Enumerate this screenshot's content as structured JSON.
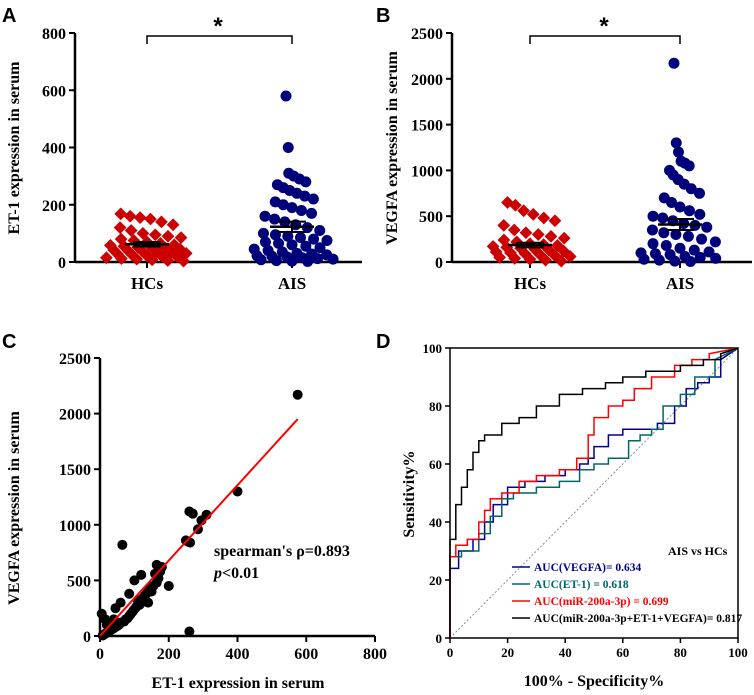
{
  "chart_data": [
    {
      "panel": "A",
      "type": "scatter",
      "subtype": "dot-plot",
      "ylabel": "ET-1 expression in serum",
      "categories": [
        "HCs",
        "AIS"
      ],
      "ylim": [
        0,
        800
      ],
      "yticks": [
        0,
        200,
        400,
        600,
        800
      ],
      "significance": "*",
      "series": [
        {
          "name": "HCs",
          "color": "#cc0000",
          "marker": "diamond",
          "mean": 62,
          "sem": 8,
          "values": [
            168,
            160,
            155,
            150,
            140,
            130,
            120,
            110,
            100,
            95,
            90,
            85,
            80,
            75,
            70,
            65,
            60,
            58,
            55,
            52,
            50,
            48,
            45,
            42,
            40,
            38,
            35,
            32,
            30,
            28,
            25,
            22,
            20,
            18,
            15,
            12,
            10,
            8,
            5,
            3
          ]
        },
        {
          "name": "AIS",
          "color": "#00007a",
          "marker": "circle",
          "mean": 123,
          "sem": 18,
          "values": [
            580,
            400,
            310,
            300,
            290,
            280,
            270,
            260,
            250,
            240,
            230,
            220,
            210,
            200,
            190,
            180,
            170,
            160,
            150,
            140,
            130,
            120,
            110,
            100,
            95,
            90,
            85,
            80,
            75,
            70,
            65,
            60,
            55,
            50,
            45,
            40,
            35,
            30,
            28,
            25,
            22,
            20,
            18,
            15,
            12,
            10,
            8,
            5,
            3,
            2
          ]
        }
      ]
    },
    {
      "panel": "B",
      "type": "scatter",
      "subtype": "dot-plot",
      "ylabel": "VEGFA expression in serum",
      "categories": [
        "HCs",
        "AIS"
      ],
      "ylim": [
        0,
        2500
      ],
      "yticks": [
        0,
        500,
        1000,
        1500,
        2000,
        2500
      ],
      "significance": "*",
      "series": [
        {
          "name": "HCs",
          "color": "#cc0000",
          "marker": "diamond",
          "mean": 185,
          "sem": 25,
          "values": [
            650,
            620,
            560,
            520,
            480,
            450,
            400,
            350,
            320,
            300,
            280,
            260,
            240,
            220,
            200,
            190,
            180,
            170,
            160,
            150,
            140,
            130,
            120,
            110,
            100,
            90,
            80,
            70,
            60,
            50,
            40,
            30,
            20,
            10
          ]
        },
        {
          "name": "AIS",
          "color": "#00007a",
          "marker": "circle",
          "mean": 410,
          "sem": 60,
          "values": [
            2170,
            1300,
            1200,
            1100,
            1080,
            1050,
            1000,
            950,
            900,
            850,
            800,
            750,
            700,
            650,
            600,
            560,
            520,
            500,
            480,
            450,
            420,
            400,
            380,
            350,
            320,
            300,
            280,
            250,
            220,
            200,
            180,
            150,
            130,
            110,
            100,
            90,
            80,
            60,
            50,
            40,
            30,
            20,
            10,
            5
          ]
        }
      ]
    },
    {
      "panel": "C",
      "type": "scatter",
      "xlabel": "ET-1 expression in serum",
      "ylabel": "VEGFA expression in serum",
      "xlim": [
        0,
        800
      ],
      "ylim": [
        0,
        2500
      ],
      "xticks": [
        0,
        200,
        400,
        600,
        800
      ],
      "yticks": [
        0,
        500,
        1000,
        1500,
        2000,
        2500
      ],
      "annotation": {
        "line1": "spearman's ρ=0.893",
        "line2_italic": "p",
        "line2_rest": "<0.01"
      },
      "fit_line": {
        "color": "#ff0000",
        "x": [
          0,
          575
        ],
        "y": [
          0,
          1950
        ]
      },
      "points": [
        [
          575,
          2170
        ],
        [
          400,
          1300
        ],
        [
          310,
          1090
        ],
        [
          295,
          1040
        ],
        [
          285,
          960
        ],
        [
          260,
          1120
        ],
        [
          270,
          1100
        ],
        [
          250,
          860
        ],
        [
          262,
          840
        ],
        [
          255,
          850
        ],
        [
          180,
          620
        ],
        [
          175,
          580
        ],
        [
          170,
          520
        ],
        [
          165,
          480
        ],
        [
          160,
          560
        ],
        [
          155,
          450
        ],
        [
          150,
          400
        ],
        [
          140,
          420
        ],
        [
          135,
          380
        ],
        [
          130,
          360
        ],
        [
          125,
          340
        ],
        [
          120,
          300
        ],
        [
          115,
          280
        ],
        [
          110,
          320
        ],
        [
          105,
          260
        ],
        [
          100,
          240
        ],
        [
          95,
          220
        ],
        [
          90,
          200
        ],
        [
          85,
          180
        ],
        [
          80,
          160
        ],
        [
          75,
          150
        ],
        [
          70,
          130
        ],
        [
          65,
          820
        ],
        [
          60,
          120
        ],
        [
          55,
          100
        ],
        [
          50,
          90
        ],
        [
          45,
          80
        ],
        [
          40,
          70
        ],
        [
          35,
          60
        ],
        [
          30,
          50
        ],
        [
          25,
          40
        ],
        [
          20,
          30
        ],
        [
          15,
          20
        ],
        [
          12,
          15
        ],
        [
          10,
          10
        ],
        [
          8,
          5
        ],
        [
          5,
          200
        ],
        [
          15,
          150
        ],
        [
          20,
          100
        ],
        [
          30,
          120
        ],
        [
          40,
          150
        ],
        [
          260,
          40
        ],
        [
          100,
          500
        ],
        [
          120,
          550
        ],
        [
          165,
          640
        ],
        [
          140,
          300
        ],
        [
          200,
          450
        ],
        [
          85,
          380
        ],
        [
          60,
          300
        ],
        [
          45,
          250
        ]
      ]
    },
    {
      "panel": "D",
      "type": "line",
      "subtype": "roc",
      "xlabel": "100% - Specificity%",
      "ylabel": "Sensitivity%",
      "xlim": [
        0,
        100
      ],
      "ylim": [
        0,
        100
      ],
      "xticks": [
        0,
        20,
        40,
        60,
        80,
        100
      ],
      "yticks": [
        0,
        20,
        40,
        60,
        80,
        100
      ],
      "legend_title": "AIS vs HCs",
      "series": [
        {
          "name": "AUC(VEGFA)= ",
          "auc": "0.634",
          "color": "#00008b",
          "x": [
            0,
            0,
            3,
            3,
            8,
            8,
            12,
            12,
            15,
            15,
            20,
            20,
            26,
            26,
            33,
            33,
            40,
            40,
            45,
            45,
            48,
            48,
            50,
            50,
            55,
            55,
            60,
            60,
            65,
            65,
            72,
            72,
            78,
            78,
            82,
            82,
            86,
            86,
            90,
            90,
            94,
            94,
            100
          ],
          "y": [
            0,
            24,
            24,
            30,
            30,
            34,
            34,
            40,
            40,
            46,
            46,
            52,
            52,
            54,
            54,
            56,
            56,
            58,
            58,
            60,
            60,
            62,
            62,
            66,
            66,
            70,
            70,
            72,
            72,
            72,
            72,
            74,
            74,
            80,
            80,
            86,
            86,
            88,
            88,
            90,
            90,
            96,
            100
          ]
        },
        {
          "name": "AUC(ET-1)",
          "auc": "  = 0.618",
          "color": "#006666",
          "x": [
            0,
            0,
            4,
            4,
            10,
            10,
            14,
            14,
            18,
            18,
            22,
            22,
            30,
            30,
            38,
            38,
            45,
            45,
            50,
            50,
            55,
            55,
            62,
            62,
            66,
            66,
            70,
            70,
            74,
            74,
            80,
            80,
            85,
            85,
            92,
            92,
            100
          ],
          "y": [
            0,
            28,
            28,
            30,
            30,
            36,
            36,
            42,
            42,
            48,
            48,
            50,
            50,
            52,
            52,
            54,
            54,
            58,
            58,
            60,
            60,
            62,
            62,
            68,
            68,
            70,
            70,
            72,
            72,
            80,
            80,
            84,
            84,
            90,
            90,
            96,
            100
          ]
        },
        {
          "name": "AUC(miR-200a-3p)",
          "auc": " = 0.699",
          "color": "#ff0000",
          "x": [
            0,
            0,
            2,
            2,
            6,
            6,
            10,
            10,
            12,
            12,
            14,
            14,
            18,
            18,
            24,
            24,
            30,
            30,
            38,
            38,
            44,
            44,
            48,
            48,
            50,
            50,
            55,
            55,
            60,
            60,
            64,
            64,
            70,
            70,
            78,
            78,
            84,
            84,
            90,
            90,
            100
          ],
          "y": [
            0,
            28,
            28,
            32,
            32,
            34,
            34,
            40,
            40,
            44,
            44,
            48,
            48,
            50,
            50,
            54,
            54,
            56,
            56,
            58,
            58,
            62,
            62,
            70,
            70,
            76,
            76,
            80,
            80,
            82,
            82,
            86,
            86,
            90,
            90,
            94,
            94,
            96,
            96,
            98,
            100
          ]
        },
        {
          "name": "AUC(miR-200a-3p+ET-1+VEGFA)= ",
          "auc": "0.817",
          "color": "#000000",
          "x": [
            0,
            0,
            2,
            2,
            4,
            4,
            6,
            6,
            8,
            8,
            10,
            10,
            12,
            12,
            18,
            18,
            24,
            24,
            30,
            30,
            38,
            38,
            46,
            46,
            54,
            54,
            60,
            60,
            68,
            68,
            80,
            80,
            88,
            88,
            94,
            94,
            100
          ],
          "y": [
            0,
            34,
            34,
            46,
            46,
            52,
            52,
            58,
            58,
            64,
            64,
            68,
            68,
            70,
            70,
            74,
            74,
            76,
            76,
            80,
            80,
            84,
            84,
            86,
            86,
            88,
            88,
            90,
            90,
            92,
            92,
            94,
            94,
            96,
            96,
            98,
            100
          ]
        }
      ]
    }
  ],
  "panels": {
    "A": {
      "letter": "A",
      "ylabel": "ET-1 expression in serum",
      "star": "*"
    },
    "B": {
      "letter": "B",
      "ylabel": "VEGFA expression in serum",
      "star": "*"
    },
    "C": {
      "letter": "C",
      "xlabel": "ET-1 expression in serum",
      "ylabel": "VEGFA expression in serum"
    },
    "D": {
      "letter": "D",
      "xlabel": "100% - Specificity%",
      "ylabel": "Sensitivity%"
    }
  }
}
